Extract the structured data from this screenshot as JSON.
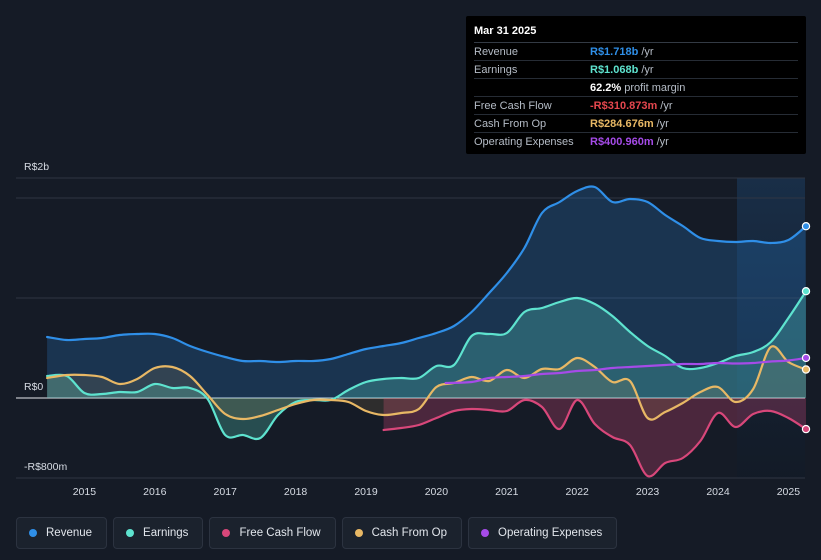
{
  "chart_data": {
    "type": "area",
    "title": "",
    "x_ticks": [
      "2015",
      "2016",
      "2017",
      "2018",
      "2019",
      "2020",
      "2021",
      "2022",
      "2023",
      "2024",
      "2025"
    ],
    "y_labels": {
      "top": "R$2b",
      "zero": "R$0",
      "bottom": "-R$800m"
    },
    "ylim": [
      -800,
      2200
    ],
    "units": "R$ millions",
    "series": [
      {
        "name": "Revenue",
        "color": "#2f8fe8",
        "x": [
          2014.47,
          2014.75,
          2015.0,
          2015.25,
          2015.5,
          2015.75,
          2016.0,
          2016.25,
          2016.5,
          2016.75,
          2017.0,
          2017.25,
          2017.5,
          2017.75,
          2018.0,
          2018.25,
          2018.5,
          2018.75,
          2019.0,
          2019.25,
          2019.5,
          2019.75,
          2020.0,
          2020.25,
          2020.5,
          2020.75,
          2021.0,
          2021.25,
          2021.5,
          2021.75,
          2022.0,
          2022.25,
          2022.5,
          2022.75,
          2023.0,
          2023.25,
          2023.5,
          2023.75,
          2024.0,
          2024.25,
          2024.5,
          2024.75,
          2025.0,
          2025.25
        ],
        "y": [
          610,
          580,
          590,
          600,
          630,
          640,
          640,
          600,
          520,
          460,
          410,
          370,
          370,
          360,
          370,
          370,
          390,
          440,
          490,
          520,
          550,
          600,
          650,
          720,
          860,
          1050,
          1250,
          1500,
          1850,
          1960,
          2070,
          2110,
          1960,
          1990,
          1960,
          1830,
          1720,
          1600,
          1570,
          1560,
          1570,
          1550,
          1580,
          1718
        ]
      },
      {
        "name": "Earnings",
        "color": "#5ee3cf",
        "x": [
          2014.47,
          2014.75,
          2015.0,
          2015.25,
          2015.5,
          2015.75,
          2016.0,
          2016.25,
          2016.5,
          2016.75,
          2017.0,
          2017.25,
          2017.5,
          2017.75,
          2018.0,
          2018.25,
          2018.5,
          2018.75,
          2019.0,
          2019.25,
          2019.5,
          2019.75,
          2020.0,
          2020.25,
          2020.5,
          2020.75,
          2021.0,
          2021.25,
          2021.5,
          2021.75,
          2022.0,
          2022.25,
          2022.5,
          2022.75,
          2023.0,
          2023.25,
          2023.5,
          2023.75,
          2024.0,
          2024.25,
          2024.5,
          2024.75,
          2025.0,
          2025.25
        ],
        "y": [
          220,
          220,
          50,
          40,
          60,
          60,
          140,
          100,
          100,
          -10,
          -370,
          -370,
          -400,
          -170,
          -40,
          -20,
          -20,
          80,
          160,
          190,
          200,
          200,
          320,
          330,
          620,
          640,
          650,
          860,
          900,
          960,
          1000,
          940,
          820,
          660,
          520,
          420,
          300,
          300,
          350,
          420,
          460,
          560,
          800,
          1068
        ]
      },
      {
        "name": "Free Cash Flow",
        "color": "#d8477a",
        "x": [
          2019.25,
          2019.5,
          2019.75,
          2020.0,
          2020.25,
          2020.5,
          2020.75,
          2021.0,
          2021.25,
          2021.5,
          2021.75,
          2022.0,
          2022.25,
          2022.5,
          2022.75,
          2023.0,
          2023.25,
          2023.5,
          2023.75,
          2024.0,
          2024.25,
          2024.5,
          2024.75,
          2025.0,
          2025.25
        ],
        "y": [
          -320,
          -300,
          -270,
          -200,
          -130,
          -110,
          -120,
          -130,
          -20,
          -90,
          -310,
          -20,
          -260,
          -390,
          -470,
          -780,
          -650,
          -600,
          -430,
          -150,
          -290,
          -160,
          -130,
          -200,
          -311
        ]
      },
      {
        "name": "Cash From Op",
        "color": "#e8b865",
        "x": [
          2014.47,
          2014.75,
          2015.0,
          2015.25,
          2015.5,
          2015.75,
          2016.0,
          2016.25,
          2016.5,
          2016.75,
          2017.0,
          2017.25,
          2017.5,
          2017.75,
          2018.0,
          2018.25,
          2018.5,
          2018.75,
          2019.0,
          2019.25,
          2019.5,
          2019.75,
          2020.0,
          2020.25,
          2020.5,
          2020.75,
          2021.0,
          2021.25,
          2021.5,
          2021.75,
          2022.0,
          2022.25,
          2022.5,
          2022.75,
          2023.0,
          2023.25,
          2023.5,
          2023.75,
          2024.0,
          2024.25,
          2024.5,
          2024.75,
          2025.0,
          2025.25
        ],
        "y": [
          200,
          230,
          230,
          210,
          140,
          190,
          300,
          310,
          220,
          30,
          -160,
          -210,
          -180,
          -120,
          -60,
          -20,
          -20,
          -40,
          -130,
          -170,
          -150,
          -110,
          110,
          150,
          210,
          170,
          280,
          200,
          290,
          290,
          400,
          310,
          160,
          170,
          -200,
          -140,
          -50,
          60,
          110,
          -40,
          90,
          510,
          360,
          285
        ]
      },
      {
        "name": "Operating Expenses",
        "color": "#a54be8",
        "x": [
          2020.13,
          2020.5,
          2020.75,
          2021.0,
          2021.25,
          2021.5,
          2021.75,
          2022.0,
          2022.25,
          2022.5,
          2022.75,
          2023.0,
          2023.25,
          2023.5,
          2023.75,
          2024.0,
          2024.25,
          2024.5,
          2024.75,
          2025.0,
          2025.25
        ],
        "y": [
          150,
          160,
          200,
          210,
          220,
          240,
          250,
          270,
          280,
          300,
          310,
          320,
          330,
          340,
          340,
          350,
          345,
          350,
          365,
          375,
          401
        ]
      }
    ]
  },
  "tooltip": {
    "date": "Mar 31 2025",
    "rows": [
      {
        "label": "Revenue",
        "value": "R$1.718b",
        "unit": "/yr",
        "color": "#2f8fe8"
      },
      {
        "label": "Earnings",
        "value": "R$1.068b",
        "unit": "/yr",
        "color": "#5ee3cf"
      },
      {
        "label": "",
        "value": "62.2%",
        "unit": "profit margin",
        "color": "#ffffff"
      },
      {
        "label": "Free Cash Flow",
        "value": "-R$310.873m",
        "unit": "/yr",
        "color": "#e5474e"
      },
      {
        "label": "Cash From Op",
        "value": "R$284.676m",
        "unit": "/yr",
        "color": "#e8b865"
      },
      {
        "label": "Operating Expenses",
        "value": "R$400.960m",
        "unit": "/yr",
        "color": "#a54be8"
      }
    ]
  },
  "legend": [
    {
      "label": "Revenue",
      "color": "#2f8fe8"
    },
    {
      "label": "Earnings",
      "color": "#5ee3cf"
    },
    {
      "label": "Free Cash Flow",
      "color": "#d8477a"
    },
    {
      "label": "Cash From Op",
      "color": "#e8b865"
    },
    {
      "label": "Operating Expenses",
      "color": "#a54be8"
    }
  ]
}
